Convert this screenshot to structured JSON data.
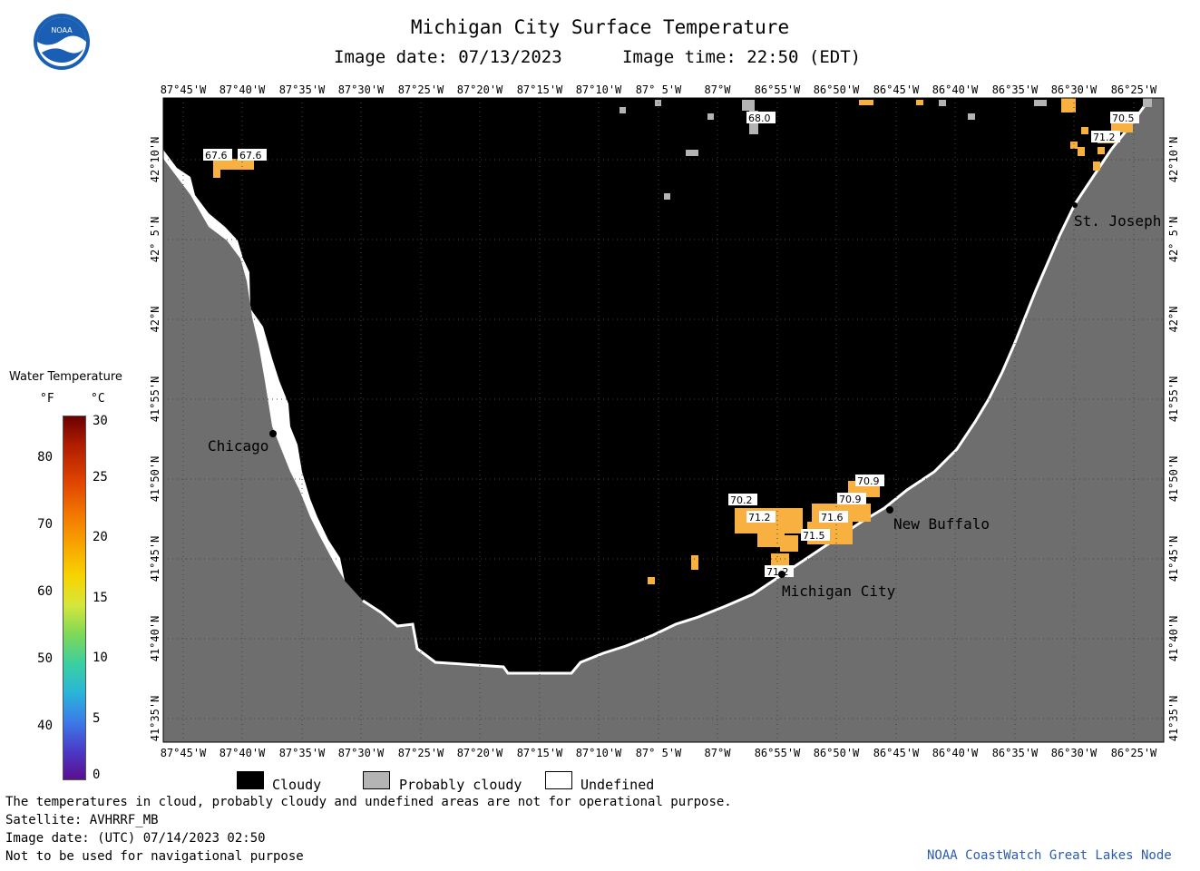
{
  "header": {
    "title": "Michigan City Surface Temperature",
    "image_date": "Image date: 07/13/2023",
    "image_time": "Image time: 22:50 (EDT)"
  },
  "logo": {
    "text": "NOAA",
    "icon": "noaa-logo-icon"
  },
  "map": {
    "lon_labels": [
      "87°45'W",
      "87°40'W",
      "87°35'W",
      "87°30'W",
      "87°25'W",
      "87°20'W",
      "87°15'W",
      "87°10'W",
      "87° 5'W",
      "87°W",
      "86°55'W",
      "86°50'W",
      "86°45'W",
      "86°40'W",
      "86°35'W",
      "86°30'W",
      "86°25'W"
    ],
    "lat_labels": [
      "42°10'N",
      "42° 5'N",
      "42°N",
      "41°55'N",
      "41°50'N",
      "41°45'N",
      "41°40'N",
      "41°35'N"
    ],
    "cities": [
      {
        "name": "Chicago"
      },
      {
        "name": "New Buffalo"
      },
      {
        "name": "Michigan City"
      },
      {
        "name": "St. Joseph"
      }
    ],
    "temp_labels": [
      "67.6",
      "67.6",
      "68.0",
      "70.5",
      "71.2",
      "70.2",
      "71.2",
      "70.9",
      "70.9",
      "71.6",
      "71.5",
      "71.2"
    ],
    "colors": {
      "cloudy": "#000000",
      "probably_cloudy": "#b4b4b4",
      "land": "#6e6e6e",
      "undefined": "#ffffff",
      "warm": "#f8b040"
    }
  },
  "colorbar": {
    "title": "Water Temperature",
    "unit_f": "°F",
    "unit_c": "°C",
    "f_ticks": [
      "80",
      "70",
      "60",
      "50",
      "40"
    ],
    "c_ticks": [
      "30",
      "25",
      "20",
      "15",
      "10",
      "5",
      "0"
    ]
  },
  "legend": {
    "cloudy": "Cloudy",
    "probably_cloudy": "Probably cloudy",
    "undefined": "Undefined"
  },
  "footer": {
    "line1": "The temperatures in cloud, probably cloudy and undefined areas are not for operational purpose.",
    "line2": "Satellite: AVHRRF_MB",
    "line3": "Image date: (UTC) 07/14/2023  02:50",
    "line4": "Not to be used for navigational purpose",
    "credit": "NOAA CoastWatch Great Lakes Node"
  }
}
